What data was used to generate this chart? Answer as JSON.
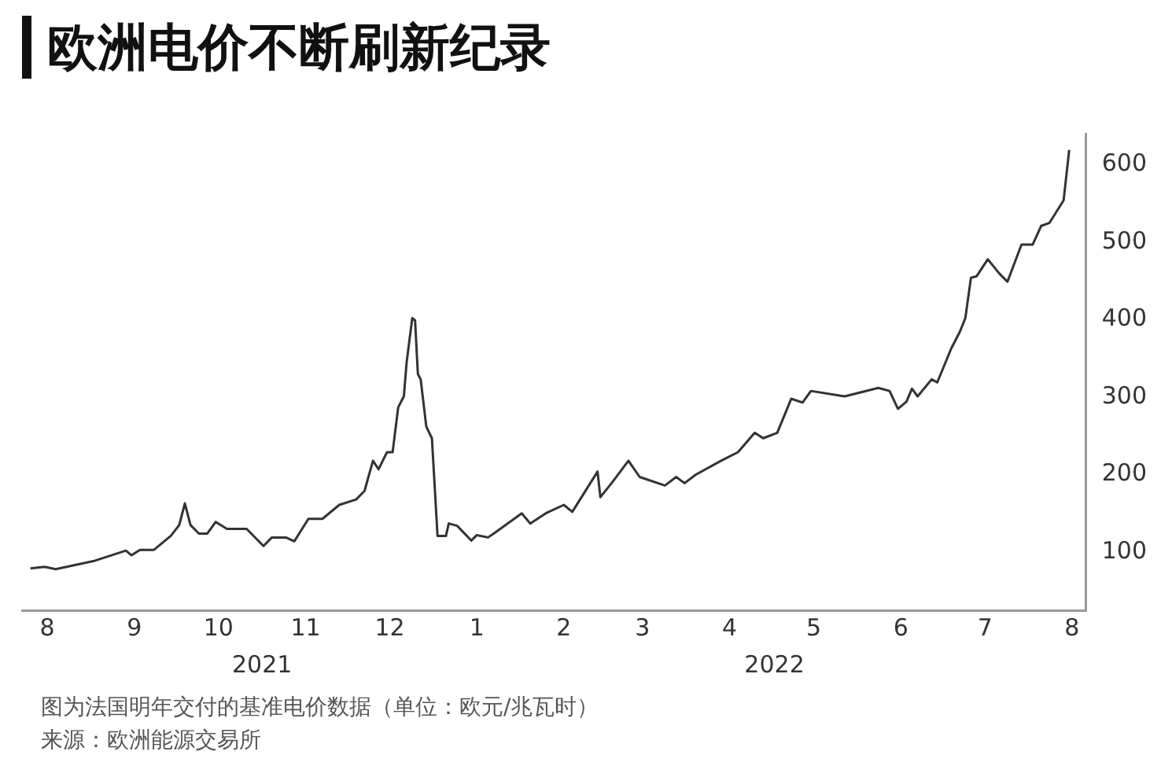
{
  "chart_data": {
    "type": "line",
    "title": "欧洲电价不断刷新纪录",
    "x": [
      "2021-07-26",
      "2021-07-31",
      "2021-08-04",
      "2021-08-18",
      "2021-08-29",
      "2021-08-31",
      "2021-09-03",
      "2021-09-08",
      "2021-09-14",
      "2021-09-17",
      "2021-09-19",
      "2021-09-21",
      "2021-09-24",
      "2021-09-27",
      "2021-09-30",
      "2021-10-04",
      "2021-10-11",
      "2021-10-17",
      "2021-10-20",
      "2021-10-25",
      "2021-10-28",
      "2021-11-02",
      "2021-11-07",
      "2021-11-13",
      "2021-11-19",
      "2021-11-22",
      "2021-11-25",
      "2021-11-27",
      "2021-11-30",
      "2021-12-02",
      "2021-12-04",
      "2021-12-06",
      "2021-12-07",
      "2021-12-09",
      "2021-12-10",
      "2021-12-11",
      "2021-12-12",
      "2021-12-14",
      "2021-12-16",
      "2021-12-18",
      "2021-12-21",
      "2021-12-22",
      "2021-12-25",
      "2021-12-30",
      "2022-01-01",
      "2022-01-05",
      "2022-01-07",
      "2022-01-17",
      "2022-01-20",
      "2022-01-26",
      "2022-02-01",
      "2022-02-04",
      "2022-02-13",
      "2022-02-14",
      "2022-02-18",
      "2022-02-24",
      "2022-02-28",
      "2022-03-09",
      "2022-03-13",
      "2022-03-16",
      "2022-03-20",
      "2022-03-29",
      "2022-04-04",
      "2022-04-10",
      "2022-04-13",
      "2022-04-18",
      "2022-04-23",
      "2022-04-27",
      "2022-04-30",
      "2022-05-12",
      "2022-05-24",
      "2022-05-28",
      "2022-05-31",
      "2022-06-03",
      "2022-06-05",
      "2022-06-07",
      "2022-06-12",
      "2022-06-14",
      "2022-06-19",
      "2022-06-22",
      "2022-06-24",
      "2022-06-26",
      "2022-06-28",
      "2022-07-02",
      "2022-07-06",
      "2022-07-09",
      "2022-07-14",
      "2022-07-18",
      "2022-07-21",
      "2022-07-24",
      "2022-07-29",
      "2022-07-31"
    ],
    "series": [
      {
        "color": "#333333",
        "values": [
          79,
          81,
          78,
          89,
          102,
          96,
          103,
          103,
          121,
          135,
          163,
          135,
          124,
          124,
          139,
          130,
          130,
          108,
          119,
          119,
          114,
          143,
          143,
          161,
          168,
          179,
          218,
          207,
          229,
          229,
          287,
          301,
          345,
          402,
          399,
          330,
          323,
          262,
          247,
          121,
          121,
          137,
          134,
          115,
          122,
          119,
          124,
          150,
          137,
          151,
          161,
          152,
          204,
          171,
          189,
          218,
          197,
          186,
          197,
          189,
          200,
          218,
          229,
          254,
          247,
          254,
          298,
          293,
          308,
          301,
          312,
          308,
          285,
          294,
          311,
          301,
          323,
          319,
          363,
          384,
          402,
          454,
          456,
          478,
          460,
          449,
          497,
          497,
          521,
          525,
          554,
          619
        ]
      }
    ],
    "xlim": [
      "2021-07-23",
      "2022-08-06"
    ],
    "xticks": [
      {
        "value": "2021-08-01",
        "label": "8"
      },
      {
        "value": "2021-09-01",
        "label": "9"
      },
      {
        "value": "2021-10-01",
        "label": "10"
      },
      {
        "value": "2021-11-01",
        "label": "11"
      },
      {
        "value": "2021-12-01",
        "label": "12"
      },
      {
        "value": "2022-01-01",
        "label": "1"
      },
      {
        "value": "2022-02-01",
        "label": "2"
      },
      {
        "value": "2022-03-01",
        "label": "3"
      },
      {
        "value": "2022-04-01",
        "label": "4"
      },
      {
        "value": "2022-05-01",
        "label": "5"
      },
      {
        "value": "2022-06-01",
        "label": "6"
      },
      {
        "value": "2022-07-01",
        "label": "7"
      },
      {
        "value": "2022-08-01",
        "label": "8"
      }
    ],
    "ylim": [
      25,
      640
    ],
    "yticks": [
      100,
      200,
      300,
      400,
      500,
      600
    ],
    "grid": false,
    "legend": false,
    "marker": "none",
    "line_style": "solid",
    "annotations": [
      "2021",
      "2022",
      "图为法国明年交付的基准电价数据（单位：欧元/兆瓦时）",
      "来源：欧洲能源交易所"
    ]
  }
}
